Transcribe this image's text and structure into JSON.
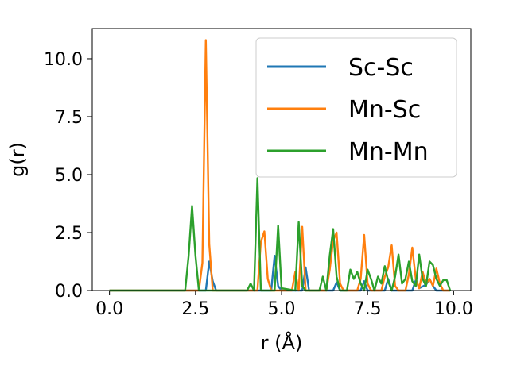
{
  "chart_data": {
    "type": "line",
    "xlabel": "r (Å)",
    "ylabel": "g(r)",
    "xlim": [
      -0.5,
      10.5
    ],
    "ylim": [
      0,
      11.3
    ],
    "x_ticks": [
      "0.0",
      "2.5",
      "5.0",
      "7.5",
      "10.0"
    ],
    "y_ticks": [
      "0.0",
      "2.5",
      "5.0",
      "7.5",
      "10.0"
    ],
    "legend_position": "top-right",
    "grid": false,
    "colors": {
      "Sc-Sc": "#1f77b4",
      "Mn-Sc": "#ff7f0e",
      "Mn-Mn": "#2ca02c"
    },
    "series": [
      {
        "name": "Sc-Sc",
        "points": [
          [
            0,
            0
          ],
          [
            2.6,
            0
          ],
          [
            2.8,
            0
          ],
          [
            2.9,
            1.25
          ],
          [
            3.0,
            0.4
          ],
          [
            3.1,
            0
          ],
          [
            4.7,
            0
          ],
          [
            4.8,
            1.5
          ],
          [
            4.9,
            0.2
          ],
          [
            5.0,
            0
          ],
          [
            5.6,
            0
          ],
          [
            5.7,
            1.0
          ],
          [
            5.8,
            0
          ],
          [
            6.5,
            0
          ],
          [
            6.6,
            0.35
          ],
          [
            6.7,
            0
          ],
          [
            7.3,
            0
          ],
          [
            7.4,
            0.4
          ],
          [
            7.5,
            0
          ],
          [
            8.0,
            0
          ],
          [
            8.1,
            0.5
          ],
          [
            8.2,
            0
          ],
          [
            8.8,
            0
          ],
          [
            8.9,
            0.45
          ],
          [
            9.0,
            0.1
          ],
          [
            9.2,
            0.25
          ],
          [
            9.3,
            0.5
          ],
          [
            9.4,
            0.2
          ],
          [
            9.5,
            0
          ],
          [
            9.9,
            0
          ]
        ]
      },
      {
        "name": "Mn-Sc",
        "points": [
          [
            0,
            0
          ],
          [
            2.6,
            0
          ],
          [
            2.7,
            1.2
          ],
          [
            2.8,
            10.8
          ],
          [
            2.9,
            2.0
          ],
          [
            3.0,
            0
          ],
          [
            4.3,
            0
          ],
          [
            4.4,
            2.1
          ],
          [
            4.5,
            2.55
          ],
          [
            4.6,
            0.5
          ],
          [
            4.7,
            0
          ],
          [
            5.3,
            0
          ],
          [
            5.4,
            0.8
          ],
          [
            5.5,
            0
          ],
          [
            5.6,
            2.75
          ],
          [
            5.7,
            0
          ],
          [
            6.3,
            0
          ],
          [
            6.4,
            0.9
          ],
          [
            6.5,
            2.15
          ],
          [
            6.6,
            2.5
          ],
          [
            6.7,
            0.3
          ],
          [
            6.8,
            0
          ],
          [
            7.2,
            0
          ],
          [
            7.3,
            0.5
          ],
          [
            7.4,
            2.4
          ],
          [
            7.5,
            0.3
          ],
          [
            7.6,
            0
          ],
          [
            7.9,
            0
          ],
          [
            8.0,
            0.6
          ],
          [
            8.1,
            1.0
          ],
          [
            8.2,
            1.95
          ],
          [
            8.3,
            0.2
          ],
          [
            8.4,
            0
          ],
          [
            8.6,
            0
          ],
          [
            8.7,
            0.7
          ],
          [
            8.8,
            1.85
          ],
          [
            8.9,
            0.5
          ],
          [
            9.0,
            0.1
          ],
          [
            9.1,
            0.8
          ],
          [
            9.2,
            0.3
          ],
          [
            9.3,
            0.5
          ],
          [
            9.4,
            0.2
          ],
          [
            9.5,
            0.95
          ],
          [
            9.6,
            0.3
          ],
          [
            9.7,
            0
          ],
          [
            9.9,
            0
          ]
        ]
      },
      {
        "name": "Mn-Mn",
        "points": [
          [
            0,
            0
          ],
          [
            2.2,
            0
          ],
          [
            2.3,
            1.5
          ],
          [
            2.4,
            3.65
          ],
          [
            2.5,
            1.5
          ],
          [
            2.6,
            0
          ],
          [
            4.0,
            0
          ],
          [
            4.1,
            0.3
          ],
          [
            4.2,
            0
          ],
          [
            4.3,
            4.85
          ],
          [
            4.4,
            0
          ],
          [
            4.8,
            0
          ],
          [
            4.9,
            2.8
          ],
          [
            5.0,
            0.1
          ],
          [
            5.4,
            0
          ],
          [
            5.5,
            2.95
          ],
          [
            5.6,
            0.2
          ],
          [
            5.7,
            0
          ],
          [
            6.1,
            0
          ],
          [
            6.2,
            0.6
          ],
          [
            6.3,
            0
          ],
          [
            6.4,
            1.5
          ],
          [
            6.5,
            2.65
          ],
          [
            6.6,
            0.6
          ],
          [
            6.7,
            0
          ],
          [
            6.9,
            0
          ],
          [
            7.0,
            0.9
          ],
          [
            7.1,
            0.5
          ],
          [
            7.2,
            0.8
          ],
          [
            7.3,
            0.3
          ],
          [
            7.4,
            0
          ],
          [
            7.5,
            0.9
          ],
          [
            7.6,
            0.5
          ],
          [
            7.7,
            0
          ],
          [
            7.8,
            0.6
          ],
          [
            7.9,
            0.3
          ],
          [
            8.0,
            1.05
          ],
          [
            8.1,
            0.4
          ],
          [
            8.2,
            0
          ],
          [
            8.3,
            0.6
          ],
          [
            8.4,
            1.55
          ],
          [
            8.5,
            0.3
          ],
          [
            8.6,
            0.5
          ],
          [
            8.7,
            1.25
          ],
          [
            8.8,
            0.4
          ],
          [
            8.9,
            0.2
          ],
          [
            9.0,
            1.55
          ],
          [
            9.1,
            0.5
          ],
          [
            9.2,
            0.2
          ],
          [
            9.3,
            1.25
          ],
          [
            9.4,
            1.1
          ],
          [
            9.5,
            0.5
          ],
          [
            9.6,
            0.2
          ],
          [
            9.7,
            0.45
          ],
          [
            9.8,
            0.45
          ],
          [
            9.9,
            0
          ]
        ]
      }
    ]
  }
}
